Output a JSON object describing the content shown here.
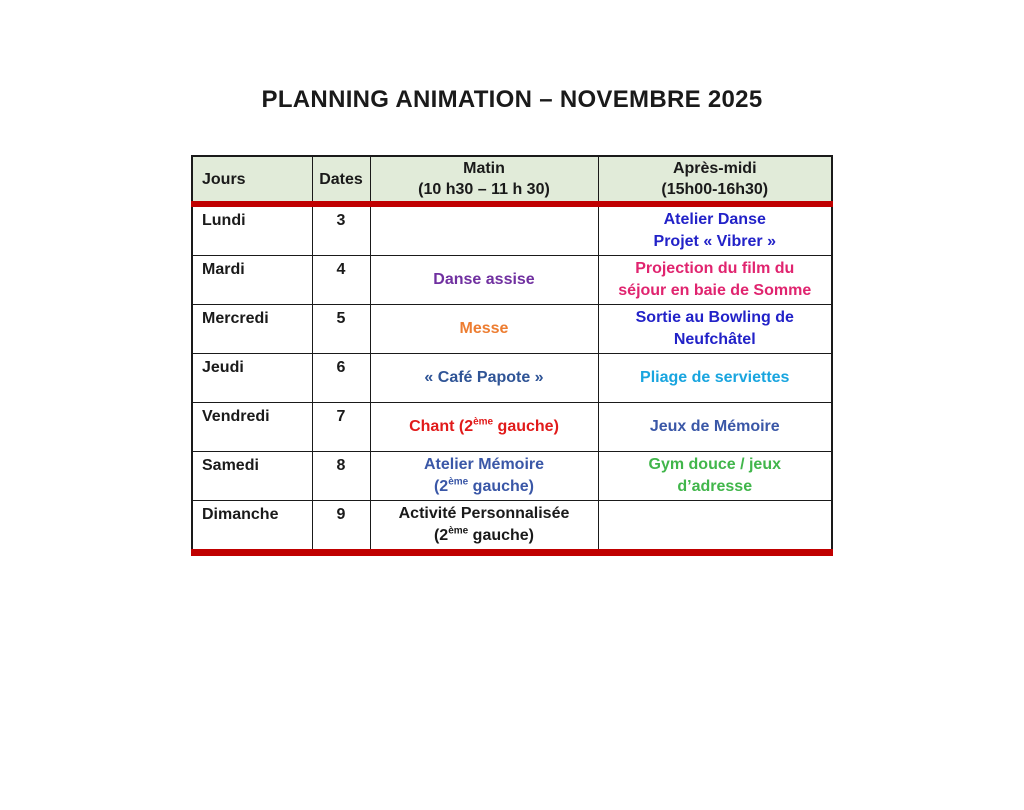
{
  "title": "PLANNING ANIMATION – NOVEMBRE 2025",
  "colors": {
    "header_bg": "#E1EBD9",
    "band_red": "#C00000",
    "border_black": "#1A1A1A",
    "blue_bright": "#2222C8",
    "purple": "#7030A0",
    "pink": "#E0246F",
    "orange": "#ED7D31",
    "dark_blue": "#2F5496",
    "cyan": "#19A5DF",
    "red": "#E11A1A",
    "medium_blue": "#3A57A7",
    "green": "#41B64B"
  },
  "table": {
    "headers": {
      "days": "Jours",
      "dates": "Dates",
      "morning": [
        "Matin",
        "(10 h30 – 11 h 30)"
      ],
      "afternoon": [
        "Après-midi",
        "(15h00-16h30)"
      ]
    },
    "rows": [
      {
        "day": "Lundi",
        "date": "3",
        "morning": null,
        "afternoon": {
          "color": "#2222C8",
          "lines": [
            [
              {
                "text": "Atelier Danse"
              }
            ],
            [
              {
                "text": "Projet « Vibrer »"
              }
            ]
          ]
        }
      },
      {
        "day": "Mardi",
        "date": "4",
        "morning": {
          "color": "#7030A0",
          "lines": [
            [
              {
                "text": "Danse assise"
              }
            ]
          ]
        },
        "afternoon": {
          "color": "#E0246F",
          "lines": [
            [
              {
                "text": "Projection du film du"
              }
            ],
            [
              {
                "text": "séjour en baie de Somme"
              }
            ]
          ]
        }
      },
      {
        "day": "Mercredi",
        "date": "5",
        "morning": {
          "color": "#ED7D31",
          "lines": [
            [
              {
                "text": "Messe"
              }
            ]
          ]
        },
        "afternoon": {
          "color": "#2222C8",
          "lines": [
            [
              {
                "text": "Sortie au Bowling de"
              }
            ],
            [
              {
                "text": "Neufchâtel"
              }
            ]
          ]
        }
      },
      {
        "day": "Jeudi",
        "date": "6",
        "morning": {
          "color": "#2F5496",
          "lines": [
            [
              {
                "text": "« Café Papote »"
              }
            ]
          ]
        },
        "afternoon": {
          "color": "#19A5DF",
          "lines": [
            [
              {
                "text": "Pliage de serviettes"
              }
            ]
          ]
        }
      },
      {
        "day": "Vendredi",
        "date": "7",
        "morning": {
          "color": "#E11A1A",
          "lines": [
            [
              {
                "text": "Chant (2"
              },
              {
                "text": "ème",
                "sup": true
              },
              {
                "text": " gauche)"
              }
            ]
          ]
        },
        "afternoon": {
          "color": "#3A57A7",
          "lines": [
            [
              {
                "text": "Jeux de Mémoire"
              }
            ]
          ]
        }
      },
      {
        "day": "Samedi",
        "date": "8",
        "morning": {
          "color": "#3A57A7",
          "lines": [
            [
              {
                "text": "Atelier Mémoire"
              }
            ],
            [
              {
                "text": "(2"
              },
              {
                "text": "ème",
                "sup": true
              },
              {
                "text": " gauche)"
              }
            ]
          ]
        },
        "afternoon": {
          "color": "#41B64B",
          "lines": [
            [
              {
                "text": "Gym douce / jeux"
              }
            ],
            [
              {
                "text": "d’adresse"
              }
            ]
          ]
        }
      },
      {
        "day": "Dimanche",
        "date": "9",
        "morning": {
          "color": "#1A1A1A",
          "lines": [
            [
              {
                "text": "Activité Personnalisée"
              }
            ],
            [
              {
                "text": "(2"
              },
              {
                "text": "ème",
                "sup": true
              },
              {
                "text": " gauche)"
              }
            ]
          ]
        },
        "afternoon": null
      }
    ]
  }
}
